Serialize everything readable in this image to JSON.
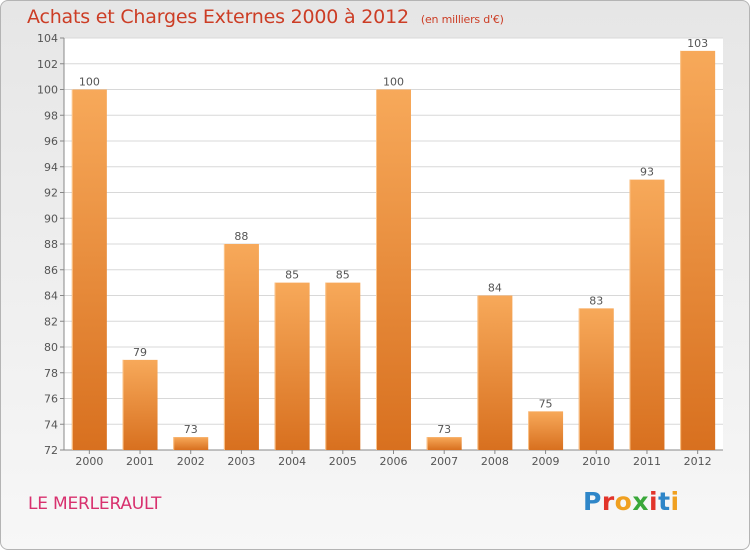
{
  "header": {
    "title": "Achats et Charges Externes 2000 à 2012",
    "unit": "(en milliers d'€)"
  },
  "footer": {
    "place": "LE MERLERAULT",
    "logo": "Proxiti"
  },
  "colors": {
    "title": "#cc3d25",
    "place": "#d8306e",
    "bar_light": "#f7a95a",
    "bar_dark": "#d8701f",
    "logo_letters": [
      "#2f86c8",
      "#e2342a",
      "#f0a020",
      "#3aa83a",
      "#e2342a",
      "#2f86c8",
      "#f0a020"
    ]
  },
  "chart_data": {
    "type": "bar",
    "title": "Achats et Charges Externes 2000 à 2012",
    "subtitle": "(en milliers d'€)",
    "categories": [
      "2000",
      "2001",
      "2002",
      "2003",
      "2004",
      "2005",
      "2006",
      "2007",
      "2008",
      "2009",
      "2010",
      "2011",
      "2012"
    ],
    "values": [
      100,
      79,
      73,
      88,
      85,
      85,
      100,
      73,
      84,
      75,
      83,
      93,
      103
    ],
    "ylim": [
      72,
      104
    ],
    "yticks": [
      72,
      74,
      76,
      78,
      80,
      82,
      84,
      86,
      88,
      90,
      92,
      94,
      96,
      98,
      100,
      102,
      104
    ],
    "grid": true,
    "xlabel": "",
    "ylabel": ""
  }
}
